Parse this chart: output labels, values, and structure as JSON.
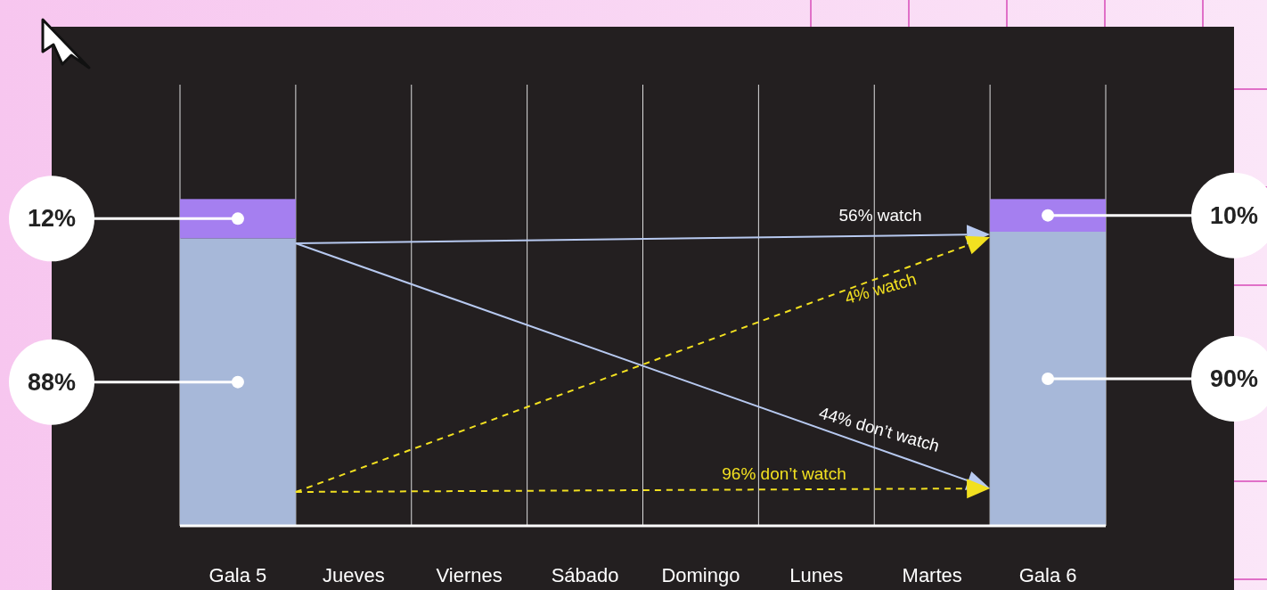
{
  "chart_data": {
    "type": "bar",
    "stacked": true,
    "categories": [
      "Gala 5",
      "Jueves",
      "Viernes",
      "Sábado",
      "Domingo",
      "Lunes",
      "Martes",
      "Gala 6"
    ],
    "series": [
      {
        "color": "#a7b8d9",
        "values": [
          88,
          null,
          null,
          null,
          null,
          null,
          null,
          90
        ],
        "value_labels": [
          "88%",
          null,
          null,
          null,
          null,
          null,
          null,
          "90%"
        ]
      },
      {
        "color": "#a57ff0",
        "values": [
          12,
          null,
          null,
          null,
          null,
          null,
          null,
          10
        ],
        "value_labels": [
          "12%",
          null,
          null,
          null,
          null,
          null,
          null,
          "10%"
        ]
      }
    ],
    "ylim": [
      0,
      135
    ],
    "tick_labels": "x",
    "grid": "x",
    "annotations": [
      "56% watch",
      "4% watch",
      "44% don’t watch",
      "96% don’t watch"
    ]
  }
}
